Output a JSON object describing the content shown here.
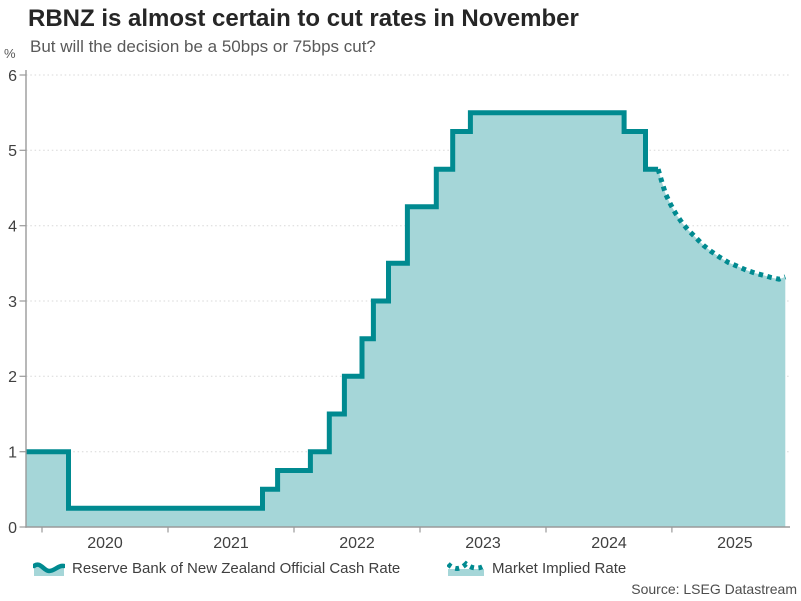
{
  "header": {
    "title": "RBNZ is almost certain to cut rates in November",
    "subtitle": "But will the decision be a 50bps or 75bps cut?"
  },
  "chart_data": {
    "type": "area",
    "unit_label": "%",
    "ylim": [
      0,
      6
    ],
    "xlim": [
      2019.873,
      2025.937
    ],
    "y_ticks": [
      0,
      1,
      2,
      3,
      4,
      5,
      6
    ],
    "x_ticks": [
      2020,
      2021,
      2022,
      2023,
      2024,
      2025
    ],
    "grid": "dotted horizontal gridlines at each integer, legend bottom, source bottom-right",
    "colors": {
      "line": "#008a90",
      "fill": "#a5d6d8",
      "axis": "#9a9a9a",
      "grid": "#d8d8d8",
      "tick_label": "#404040"
    },
    "series": [
      {
        "name": "Reserve Bank of New Zealand Official Cash Rate",
        "style": "solid-step",
        "points": [
          [
            2019.873,
            1.0
          ],
          [
            2020.21,
            0.25
          ],
          [
            2021.75,
            0.5
          ],
          [
            2021.87,
            0.75
          ],
          [
            2022.13,
            1.0
          ],
          [
            2022.28,
            1.5
          ],
          [
            2022.4,
            2.0
          ],
          [
            2022.54,
            2.5
          ],
          [
            2022.63,
            3.0
          ],
          [
            2022.75,
            3.5
          ],
          [
            2022.9,
            4.25
          ],
          [
            2023.13,
            4.75
          ],
          [
            2023.26,
            5.25
          ],
          [
            2023.4,
            5.5
          ],
          [
            2024.62,
            5.25
          ],
          [
            2024.79,
            4.75
          ]
        ],
        "end_x": 2024.89
      },
      {
        "name": "Market Implied Rate",
        "style": "dotted",
        "points": [
          [
            2024.89,
            4.75
          ],
          [
            2024.92,
            4.58
          ],
          [
            2024.95,
            4.42
          ],
          [
            2024.99,
            4.28
          ],
          [
            2025.03,
            4.16
          ],
          [
            2025.08,
            4.04
          ],
          [
            2025.13,
            3.94
          ],
          [
            2025.19,
            3.84
          ],
          [
            2025.25,
            3.74
          ],
          [
            2025.31,
            3.66
          ],
          [
            2025.38,
            3.58
          ],
          [
            2025.45,
            3.51
          ],
          [
            2025.52,
            3.46
          ],
          [
            2025.59,
            3.41
          ],
          [
            2025.66,
            3.37
          ],
          [
            2025.73,
            3.34
          ],
          [
            2025.79,
            3.31
          ],
          [
            2025.85,
            3.29
          ],
          [
            2025.9,
            3.32
          ]
        ]
      }
    ]
  },
  "legend": {
    "item1": "Reserve Bank of New Zealand Official Cash Rate",
    "item2": "Market Implied Rate"
  },
  "footer": {
    "source": "Source: LSEG Datastream"
  }
}
